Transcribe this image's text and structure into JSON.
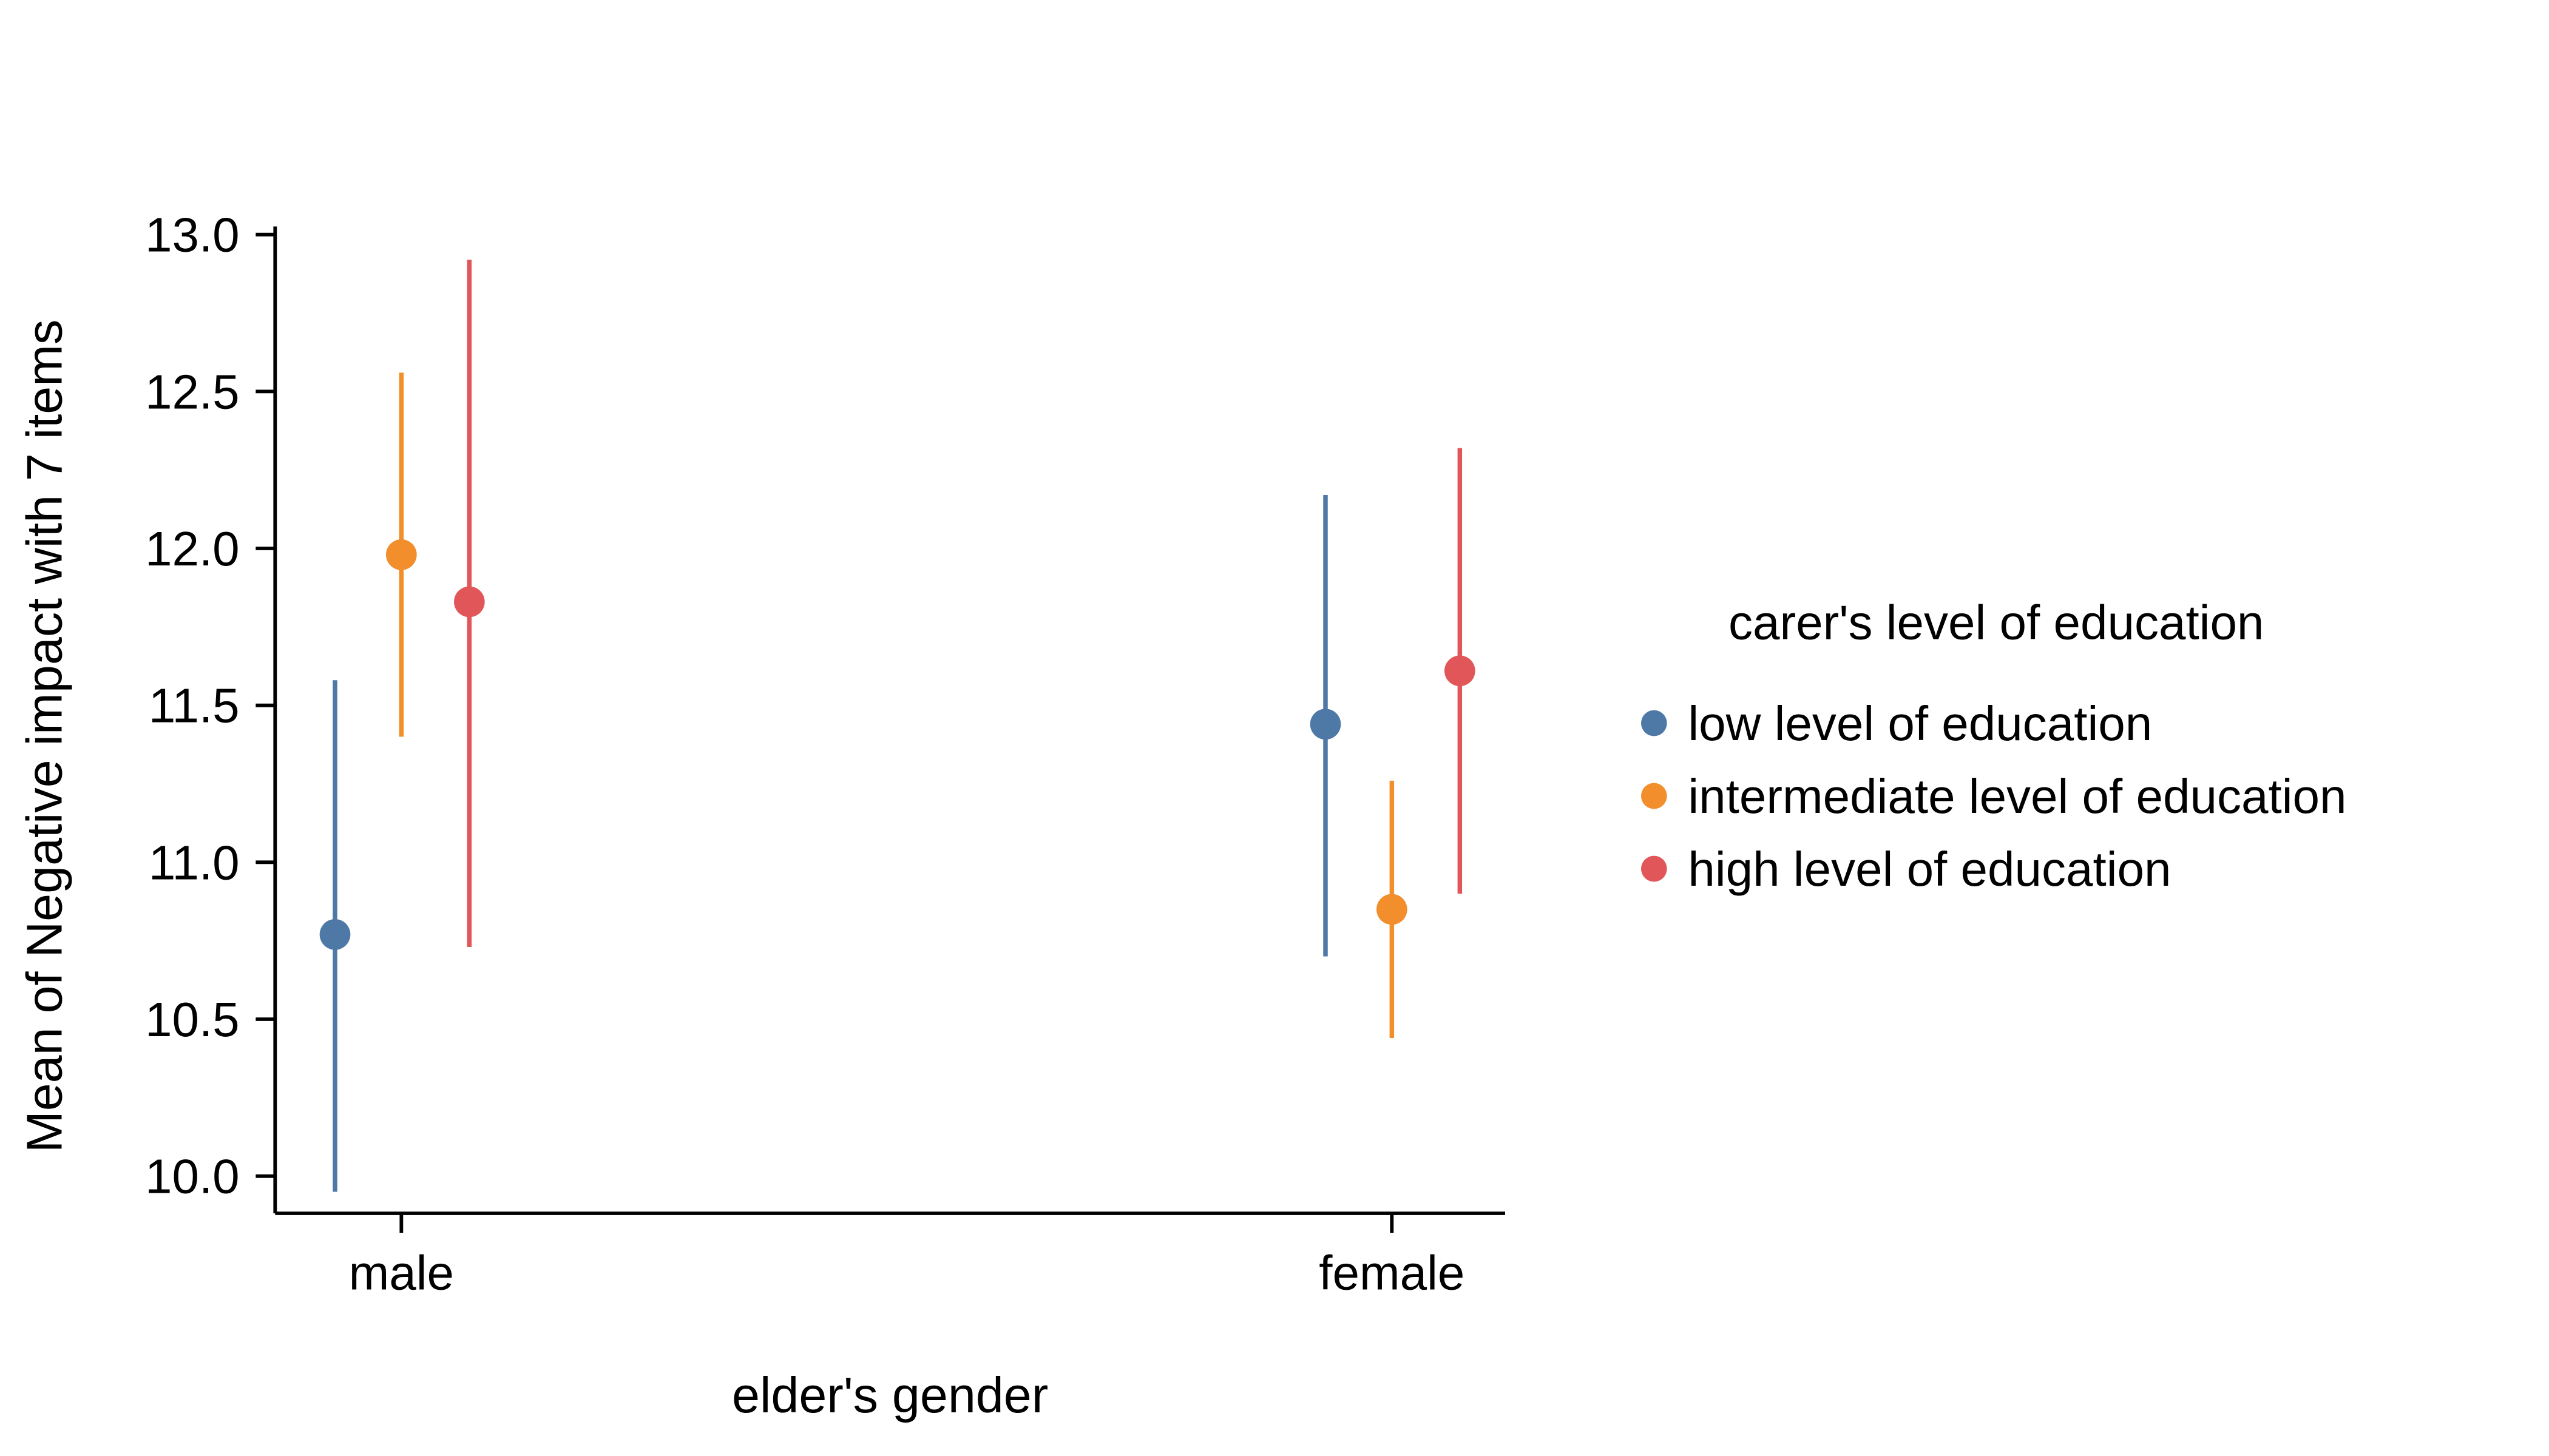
{
  "chart_data": {
    "type": "scatter",
    "title": "",
    "xlabel": "elder's gender",
    "ylabel": "Mean of Negative impact with 7 items",
    "categories": [
      "male",
      "female"
    ],
    "ylim": [
      9.8,
      13.05
    ],
    "yticks": [
      10.0,
      10.5,
      11.0,
      11.5,
      12.0,
      12.5,
      13.0
    ],
    "grid": "off",
    "legend_position": "right",
    "legend_title": "carer's level of education",
    "series": [
      {
        "name": "low level of education",
        "color": "#4E79A7",
        "points": [
          {
            "x": "male",
            "y": 10.77,
            "ymin": 9.95,
            "ymax": 11.58
          },
          {
            "x": "female",
            "y": 11.44,
            "ymin": 10.7,
            "ymax": 12.17
          }
        ]
      },
      {
        "name": "intermediate level of education",
        "color": "#F28E2B",
        "points": [
          {
            "x": "male",
            "y": 11.98,
            "ymin": 11.4,
            "ymax": 12.56
          },
          {
            "x": "female",
            "y": 10.85,
            "ymin": 10.44,
            "ymax": 11.26
          }
        ]
      },
      {
        "name": "high level of education",
        "color": "#E15759",
        "points": [
          {
            "x": "male",
            "y": 11.83,
            "ymin": 10.73,
            "ymax": 12.92
          },
          {
            "x": "female",
            "y": 11.61,
            "ymin": 10.9,
            "ymax": 12.32
          }
        ]
      }
    ]
  }
}
